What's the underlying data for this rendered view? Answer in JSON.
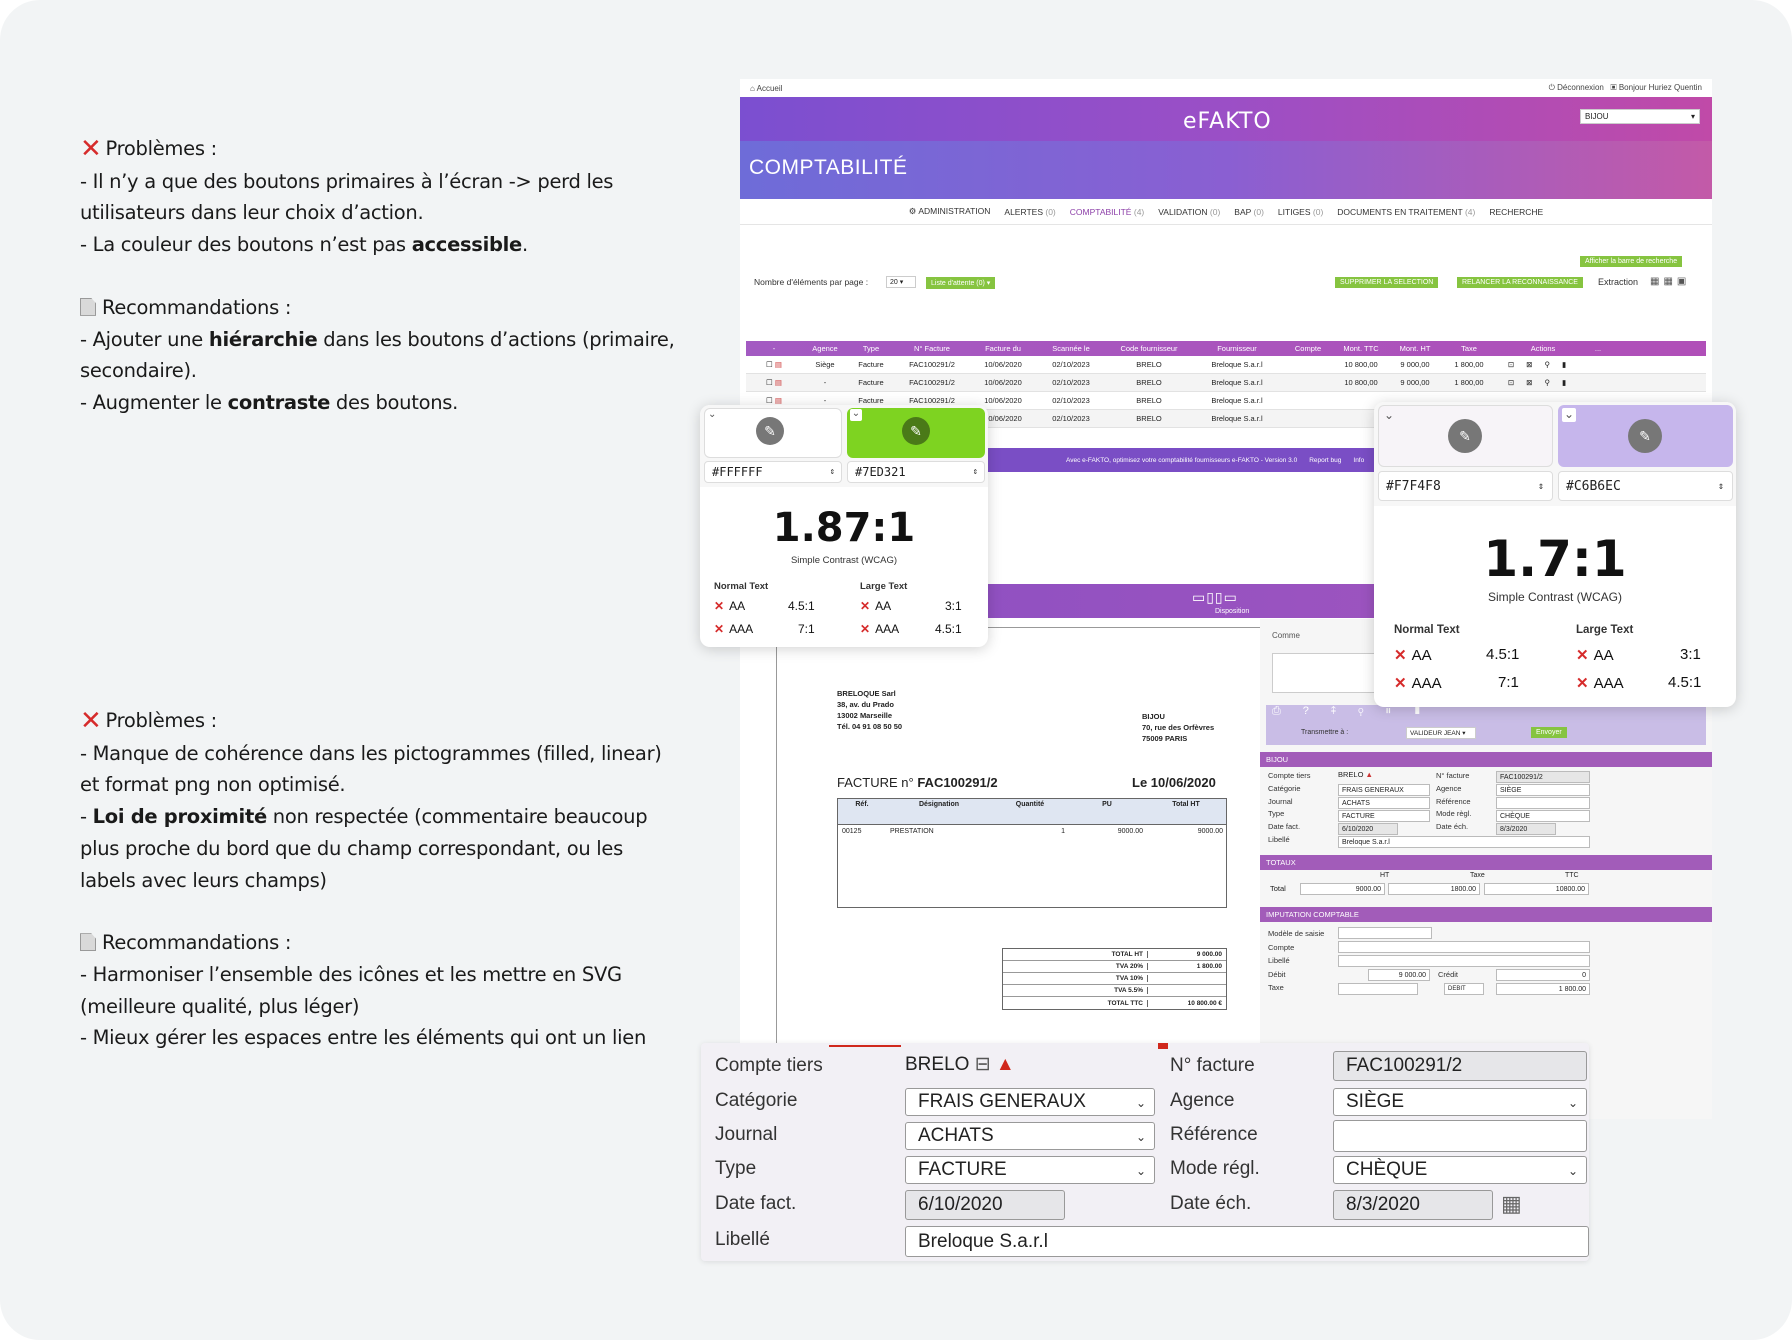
{
  "left": {
    "block1": {
      "problems_title": "Problèmes :",
      "p1": "- Il n’y a que des boutons primaires à l’écran -> perd les utilisateurs dans leur choix d’action.",
      "p2_pre": "- La couleur des boutons n’est pas ",
      "p2_bold": "accessible",
      "p2_post": ".",
      "reco_title": "Recommandations :",
      "r1_pre": "- Ajouter une ",
      "r1_bold": "hiérarchie",
      "r1_post": " dans les boutons d’actions (primaire, secondaire).",
      "r2_pre": "- Augmenter le ",
      "r2_bold": "contraste",
      "r2_post": " des boutons."
    },
    "block2": {
      "problems_title": "Problèmes :",
      "p1": "- Manque de cohérence dans les pictogrammes (filled, linear) et format png non optimisé.",
      "p2_bold": "Loi de proximité",
      "p2_post": " non respectée (commentaire beaucoup plus proche du bord que du champ correspondant, ou les labels avec leurs champs)",
      "reco_title": "Recommandations :",
      "r1": "- Harmoniser l’ensemble des icônes et les mettre en SVG (meilleure qualité, plus léger)",
      "r2": "- Mieux gérer les espaces entre les éléments qui ont un lien"
    }
  },
  "app": {
    "home": "Accueil",
    "logout": "Déconnexion",
    "user": "Bonjour Huriez Quentin",
    "logo": "eFAKTO",
    "company_select": "BIJOU",
    "section_title": "COMPTABILITÉ",
    "nav": [
      {
        "label": "ADMINISTRATION",
        "count": ""
      },
      {
        "label": "ALERTES",
        "count": "(0)"
      },
      {
        "label": "COMPTABILITÉ",
        "count": "(4)"
      },
      {
        "label": "VALIDATION",
        "count": "(0)"
      },
      {
        "label": "BAP",
        "count": "(0)"
      },
      {
        "label": "LITIGES",
        "count": "(0)"
      },
      {
        "label": "DOCUMENTS EN TRAITEMENT",
        "count": "(4)"
      },
      {
        "label": "RECHERCHE",
        "count": ""
      }
    ],
    "show_search": "Afficher la barre de recherche",
    "per_page_label": "Nombre d'éléments par page :",
    "per_page_value": "20",
    "waitlist": "Liste d'attente (0) ▾",
    "delete_sel": "SUPPRIMER LA SELECTION",
    "relaunch": "RELANCER LA RECONNAISSANCE",
    "extraction": "Extraction",
    "columns": [
      "-",
      "Agence",
      "Type",
      "N° Facture",
      "Facture du",
      "Scannée le",
      "Code fournisseur",
      "Fournisseur",
      "Compte",
      "Mont. TTC",
      "Mont. HT",
      "Taxe",
      "Actions",
      "..."
    ],
    "rows": [
      [
        "Siège",
        "Facture",
        "FAC100291/2",
        "10/06/2020",
        "02/10/2023",
        "BRELO",
        "Breloque S.a.r.l",
        "",
        "10 800,00",
        "9 000,00",
        "1 800,00"
      ],
      [
        "-",
        "Facture",
        "FAC100291/2",
        "10/06/2020",
        "02/10/2023",
        "BRELO",
        "Breloque S.a.r.l",
        "",
        "10 800,00",
        "9 000,00",
        "1 800,00"
      ],
      [
        "-",
        "Facture",
        "FAC100291/2",
        "10/06/2020",
        "02/10/2023",
        "BRELO",
        "Breloque S.a.r.l",
        "",
        "",
        "",
        ""
      ],
      [
        "",
        "",
        "",
        "10/06/2020",
        "02/10/2023",
        "BRELO",
        "Breloque S.a.r.l",
        "",
        "",
        "",
        ""
      ]
    ],
    "footer": "Avec e-FAKTO, optimisez votre comptabilité fournisseurs e-FAKTO - Version 3.0",
    "report_bug": "Report bug",
    "info": "Info",
    "disposition": "Disposition",
    "comment": "Comme",
    "transmit_label": "Transmettre à :",
    "transmit_value": "VALIDEUR JEAN",
    "send": "Envoyer",
    "doc": {
      "sender": [
        "BRELOQUE Sarl",
        "38, av. du Prado",
        "13002 Marseille",
        "Tél.   04 91 08 50 50"
      ],
      "recipient": [
        "BIJOU",
        "70, rue des Orfèvres",
        "75009 PARIS"
      ],
      "invoice_prefix": "FACTURE n° ",
      "invoice_no": "FAC100291/2",
      "date": "Le 10/06/2020",
      "cols": [
        "Réf.",
        "Désignation",
        "Quantité",
        "PU",
        "Total HT"
      ],
      "line": [
        "00125",
        "PRESTATION",
        "1",
        "9000.00",
        "9000.00"
      ],
      "totals": [
        [
          "TOTAL HT",
          "9 000.00"
        ],
        [
          "TVA 20%",
          "1 800.00"
        ],
        [
          "TVA 10%",
          ""
        ],
        [
          "TVA 5.5%",
          ""
        ],
        [
          "TOTAL TTC",
          "10 800.00 €"
        ]
      ]
    },
    "panel": {
      "bijou": "BIJOU",
      "labels": [
        "Compte tiers",
        "Catégorie",
        "Journal",
        "Type",
        "Date fact.",
        "Libellé"
      ],
      "labels_r": [
        "N° facture",
        "Agence",
        "Référence",
        "Mode règl.",
        "Date éch."
      ],
      "totaux": "TOTAUX",
      "total": "Total",
      "ht": "HT",
      "taxe": "Taxe",
      "ttc": "TTC",
      "ht_v": "9000.00",
      "taxe_v": "1800.00",
      "ttc_v": "10800.00",
      "imputation": "IMPUTATION COMPTABLE",
      "imp_labels": [
        "Modèle de saisie",
        "Compte",
        "Libellé",
        "Débit",
        "Taxe"
      ],
      "debit_v": "9 000.00",
      "credit": "Crédit",
      "credit_v": "0",
      "sens": "DEBIT",
      "taxe_amount": "1 800.00"
    }
  },
  "contrast1": {
    "fg": "#FFFFFF",
    "bg": "#7ED321",
    "ratio": "1.87:1",
    "label": "Simple Contrast (WCAG)",
    "normal": "Normal Text",
    "large": "Large Text",
    "aa": "AA",
    "aaa": "AAA",
    "n_aa": "4.5:1",
    "n_aaa": "7:1",
    "l_aa": "3:1",
    "l_aaa": "4.5:1"
  },
  "contrast2": {
    "fg": "#F7F4F8",
    "bg": "#C6B6EC",
    "ratio": "1.7:1",
    "label": "Simple Contrast (WCAG)",
    "normal": "Normal Text",
    "large": "Large Text",
    "aa": "AA",
    "aaa": "AAA",
    "n_aa": "4.5:1",
    "n_aaa": "7:1",
    "l_aa": "3:1",
    "l_aaa": "4.5:1"
  },
  "zoom": {
    "compte_tiers": "Compte tiers",
    "compte_val": "BRELO",
    "categorie": "Catégorie",
    "categorie_val": "FRAIS GENERAUX",
    "journal": "Journal",
    "journal_val": "ACHATS",
    "type": "Type",
    "type_val": "FACTURE",
    "date_fact": "Date fact.",
    "date_fact_val": "6/10/2020",
    "libelle": "Libellé",
    "libelle_val": "Breloque S.a.r.l",
    "no_facture": "N° facture",
    "no_facture_val": "FAC100291/2",
    "agence": "Agence",
    "agence_val": "SIÈGE",
    "reference": "Référence",
    "reference_val": "",
    "mode": "Mode régl.",
    "mode_val": "CHÈQUE",
    "date_ech": "Date éch.",
    "date_ech_val": "8/3/2020"
  },
  "colors": {
    "accent": "#8c3fa8",
    "green": "#7ED321",
    "lavender": "#C6B6EC",
    "error": "#d62b2b"
  }
}
